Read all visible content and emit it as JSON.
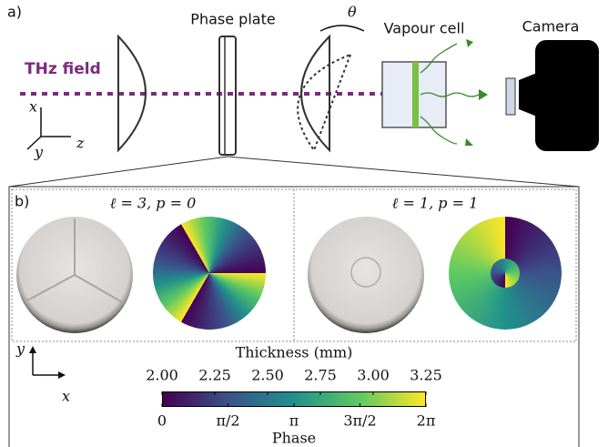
{
  "panel_a": {
    "label": "a)",
    "thz_field": "THz field",
    "phase_plate": "Phase plate",
    "theta": "θ",
    "vapour_cell": "Vapour cell",
    "camera": "Camera",
    "axes": {
      "x": "x",
      "y": "y",
      "z": "z"
    }
  },
  "panel_b": {
    "label": "b)",
    "plates": [
      {
        "label": "ℓ = 3, p = 0"
      },
      {
        "label": "ℓ = 1, p = 1"
      }
    ],
    "axes": {
      "x": "x",
      "y": "y"
    },
    "colorbar": {
      "thickness_title": "Thickness (mm)",
      "thickness_ticks": [
        "2.00",
        "2.25",
        "2.50",
        "2.75",
        "3.00",
        "3.25"
      ],
      "phase_title": "Phase",
      "phase_ticks": [
        "0",
        "π/2",
        "π",
        "3π/2",
        "2π"
      ]
    }
  }
}
